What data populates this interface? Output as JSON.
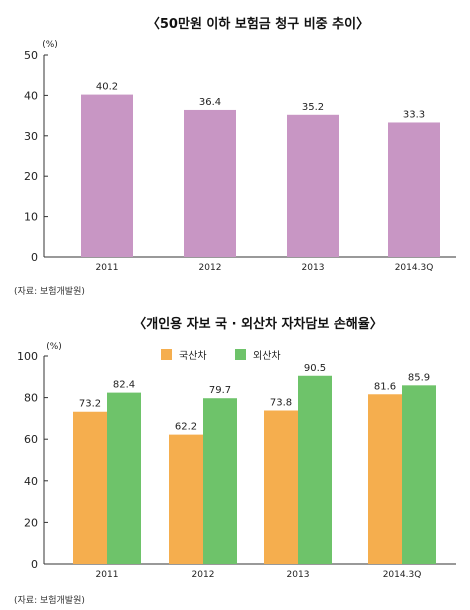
{
  "chart_data": [
    {
      "type": "bar",
      "title": "〈50만원 이하 보험금 청구 비중 추이〉",
      "unit": "(%)",
      "categories": [
        "2011",
        "2012",
        "2013",
        "2014.3Q"
      ],
      "values": [
        40.2,
        36.4,
        35.2,
        33.3
      ],
      "value_labels": [
        "40.2",
        "36.4",
        "35.2",
        "33.3"
      ],
      "ylim": [
        0,
        50
      ],
      "yticks": [
        0,
        10,
        20,
        30,
        40,
        50
      ],
      "grid": false,
      "legend": "none",
      "colors": {
        "bar": "#c896c4"
      },
      "source": "(자료: 보험개발원)"
    },
    {
      "type": "bar",
      "title": "〈개인용 자보 국 · 외산차 자차담보 손해율〉",
      "unit": "(%)",
      "categories": [
        "2011",
        "2012",
        "2013",
        "2014.3Q"
      ],
      "series": [
        {
          "name": "국산차",
          "values": [
            73.2,
            62.2,
            73.8,
            81.6
          ],
          "labels": [
            "73.2",
            "62.2",
            "73.8",
            "81.6"
          ],
          "color": "#f5ae4e"
        },
        {
          "name": "외산차",
          "values": [
            82.4,
            79.7,
            90.5,
            85.9
          ],
          "labels": [
            "82.4",
            "79.7",
            "90.5",
            "85.9"
          ],
          "color": "#6ec36a"
        }
      ],
      "ylim": [
        0,
        100
      ],
      "yticks": [
        0,
        20,
        40,
        60,
        80,
        100
      ],
      "grid": false,
      "legend": "top-center",
      "source": "(자료: 보험개발원)"
    }
  ]
}
